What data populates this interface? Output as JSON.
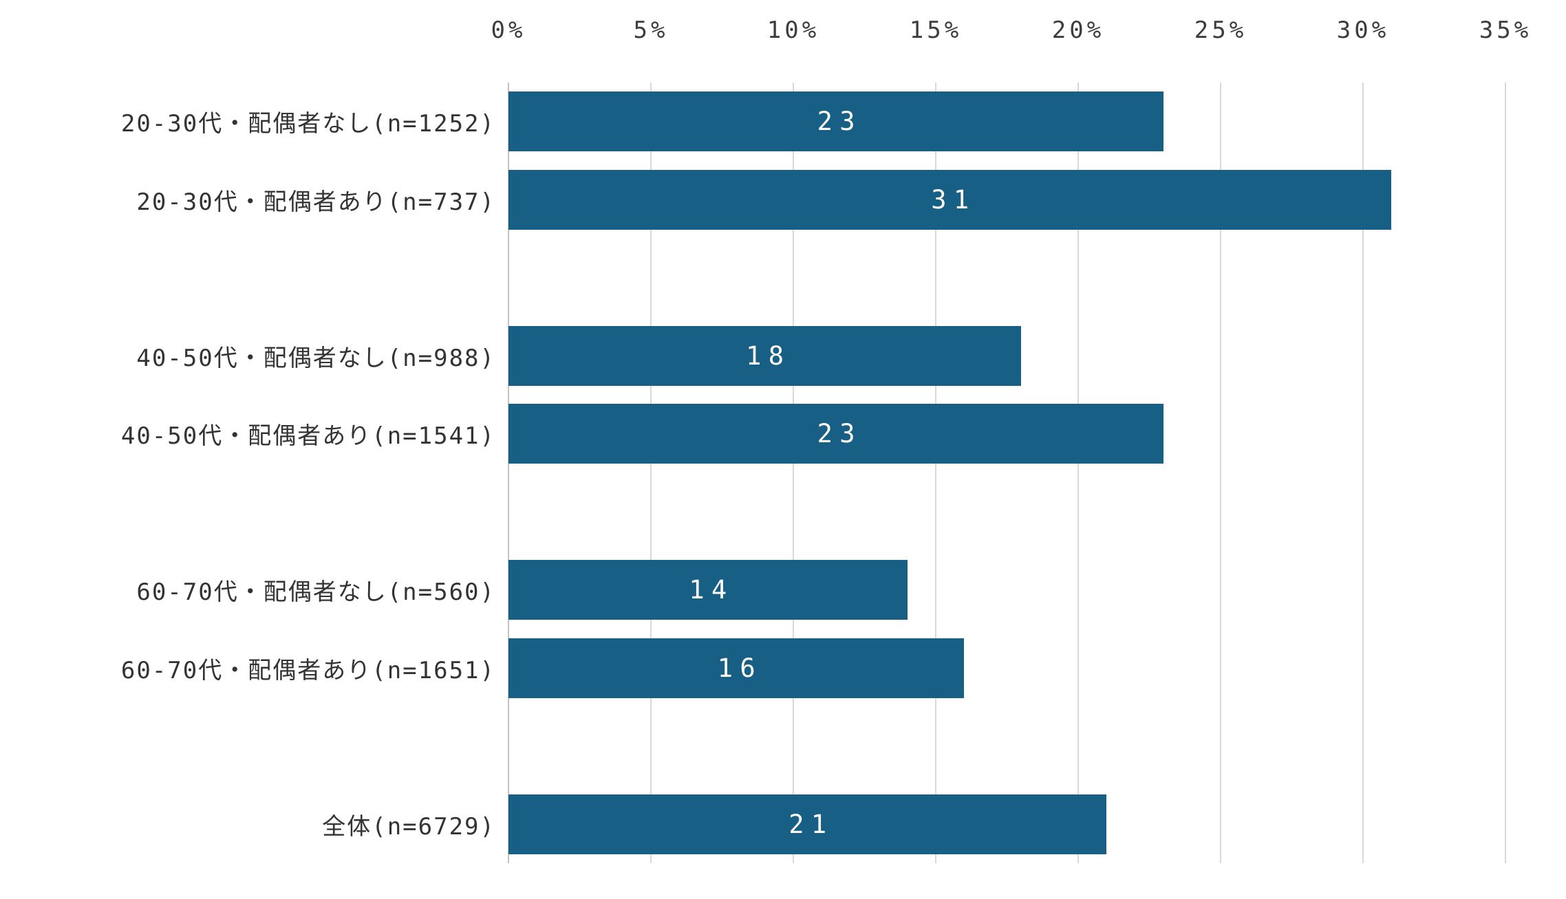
{
  "chart_data": {
    "type": "bar",
    "orientation": "horizontal",
    "title": "",
    "xlabel": "",
    "ylabel": "",
    "value_unit": "%",
    "x_axis": {
      "position": "top",
      "min": 0,
      "max": 35,
      "tick_step": 5,
      "ticks": [
        "0%",
        "5%",
        "10%",
        "15%",
        "20%",
        "25%",
        "30%",
        "35%"
      ],
      "grid": true
    },
    "legend": "none",
    "bar_color": "#175f84",
    "gridline_color": "#d9d9d9",
    "axis_line_color": "#c4c4c4",
    "value_label_color": "#ffffff",
    "category_label_color": "#333333",
    "categories": [
      "20-30代・配偶者なし(n=1252)",
      "20-30代・配偶者あり(n=737)",
      "40-50代・配偶者なし(n=988)",
      "40-50代・配偶者あり(n=1541)",
      "60-70代・配偶者なし(n=560)",
      "60-70代・配偶者あり(n=1651)",
      "全体(n=6729)"
    ],
    "values": [
      23,
      31,
      18,
      23,
      14,
      16,
      21
    ],
    "rows": [
      {
        "label": "20-30代・配偶者なし(n=1252)",
        "value": 23
      },
      {
        "label": "20-30代・配偶者あり(n=737)",
        "value": 31
      },
      {
        "spacer": true
      },
      {
        "label": "40-50代・配偶者なし(n=988)",
        "value": 18
      },
      {
        "label": "40-50代・配偶者あり(n=1541)",
        "value": 23
      },
      {
        "spacer": true
      },
      {
        "label": "60-70代・配偶者なし(n=560)",
        "value": 14
      },
      {
        "label": "60-70代・配偶者あり(n=1651)",
        "value": 16
      },
      {
        "spacer": true
      },
      {
        "label": "全体(n=6729)",
        "value": 21
      }
    ]
  }
}
